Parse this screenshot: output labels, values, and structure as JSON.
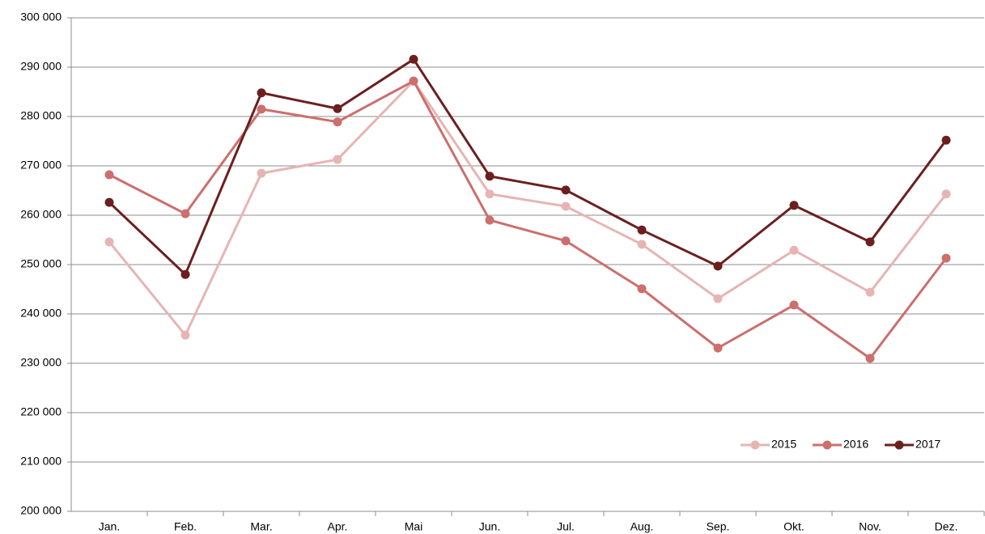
{
  "chart_data": {
    "type": "line",
    "categories": [
      "Jan.",
      "Feb.",
      "Mar.",
      "Apr.",
      "Mai",
      "Jun.",
      "Jul.",
      "Aug.",
      "Sep.",
      "Okt.",
      "Nov.",
      "Dez."
    ],
    "series": [
      {
        "name": "2015",
        "color": "#e6b5b3",
        "values": [
          254600,
          235700,
          268500,
          271300,
          287200,
          264300,
          261800,
          254100,
          243100,
          252900,
          244400,
          264300
        ]
      },
      {
        "name": "2016",
        "color": "#cc6f6d",
        "values": [
          268200,
          260300,
          281500,
          278900,
          287200,
          259000,
          254800,
          245100,
          233100,
          241800,
          231000,
          251300
        ]
      },
      {
        "name": "2017",
        "color": "#6b1f1f",
        "values": [
          262600,
          248000,
          284800,
          281600,
          291600,
          267900,
          265100,
          257000,
          249700,
          262000,
          254600,
          275200
        ]
      }
    ],
    "ylim": [
      200000,
      300000
    ],
    "yticks": [
      {
        "value": 200000,
        "label": "200 000"
      },
      {
        "value": 210000,
        "label": "210 000"
      },
      {
        "value": 220000,
        "label": "220 000"
      },
      {
        "value": 230000,
        "label": "230 000"
      },
      {
        "value": 240000,
        "label": "240 000"
      },
      {
        "value": 250000,
        "label": "250 000"
      },
      {
        "value": 260000,
        "label": "260 000"
      },
      {
        "value": 270000,
        "label": "270 000"
      },
      {
        "value": 280000,
        "label": "280 000"
      },
      {
        "value": 290000,
        "label": "290 000"
      },
      {
        "value": 300000,
        "label": "300 000"
      }
    ],
    "grid": true,
    "legend": "bottom-right"
  }
}
